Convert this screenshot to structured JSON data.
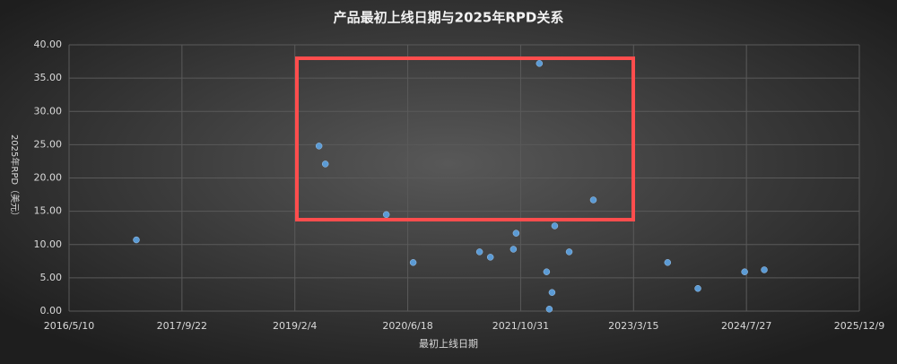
{
  "chart_data": {
    "type": "scatter",
    "title": "产品最初上线日期与2025年RPD关系",
    "x_label": "最初上线日期",
    "y_label": "2025年RPD（美元）",
    "color": "#5b9bd5",
    "grid": true,
    "x": [
      "2017/3/4",
      "2019/5/22",
      "2019/6/19",
      "2020/3/15",
      "2020/7/12",
      "2021/5/2",
      "2021/6/19",
      "2021/9/29",
      "2021/10/11",
      "2022/1/22",
      "2022/2/23",
      "2022/3/7",
      "2022/3/19",
      "2022/3/31",
      "2022/6/3",
      "2022/9/18",
      "2023/8/13",
      "2023/12/25",
      "2024/7/19",
      "2024/10/14"
    ],
    "values": [
      10.7,
      24.8,
      22.1,
      14.5,
      7.3,
      8.9,
      8.1,
      9.3,
      11.7,
      37.2,
      5.9,
      0.3,
      2.8,
      12.8,
      8.9,
      16.7,
      7.3,
      3.4,
      5.9,
      6.2
    ],
    "xlim": [
      "2016/5/10",
      "2025/12/9"
    ],
    "xticks": [
      "2016/5/10",
      "2017/9/22",
      "2019/2/4",
      "2020/6/18",
      "2021/10/31",
      "2023/3/15",
      "2024/7/27",
      "2025/12/9"
    ],
    "ylim": [
      0,
      40
    ],
    "yticks": [
      {
        "value": 0,
        "label": "0.00"
      },
      {
        "value": 5,
        "label": "5.00"
      },
      {
        "value": 10,
        "label": "10.00"
      },
      {
        "value": 15,
        "label": "15.00"
      },
      {
        "value": 20,
        "label": "20.00"
      },
      {
        "value": 25,
        "label": "25.00"
      },
      {
        "value": 30,
        "label": "30.00"
      },
      {
        "value": 35,
        "label": "35.00"
      },
      {
        "value": 40,
        "label": "40.00"
      }
    ]
  }
}
